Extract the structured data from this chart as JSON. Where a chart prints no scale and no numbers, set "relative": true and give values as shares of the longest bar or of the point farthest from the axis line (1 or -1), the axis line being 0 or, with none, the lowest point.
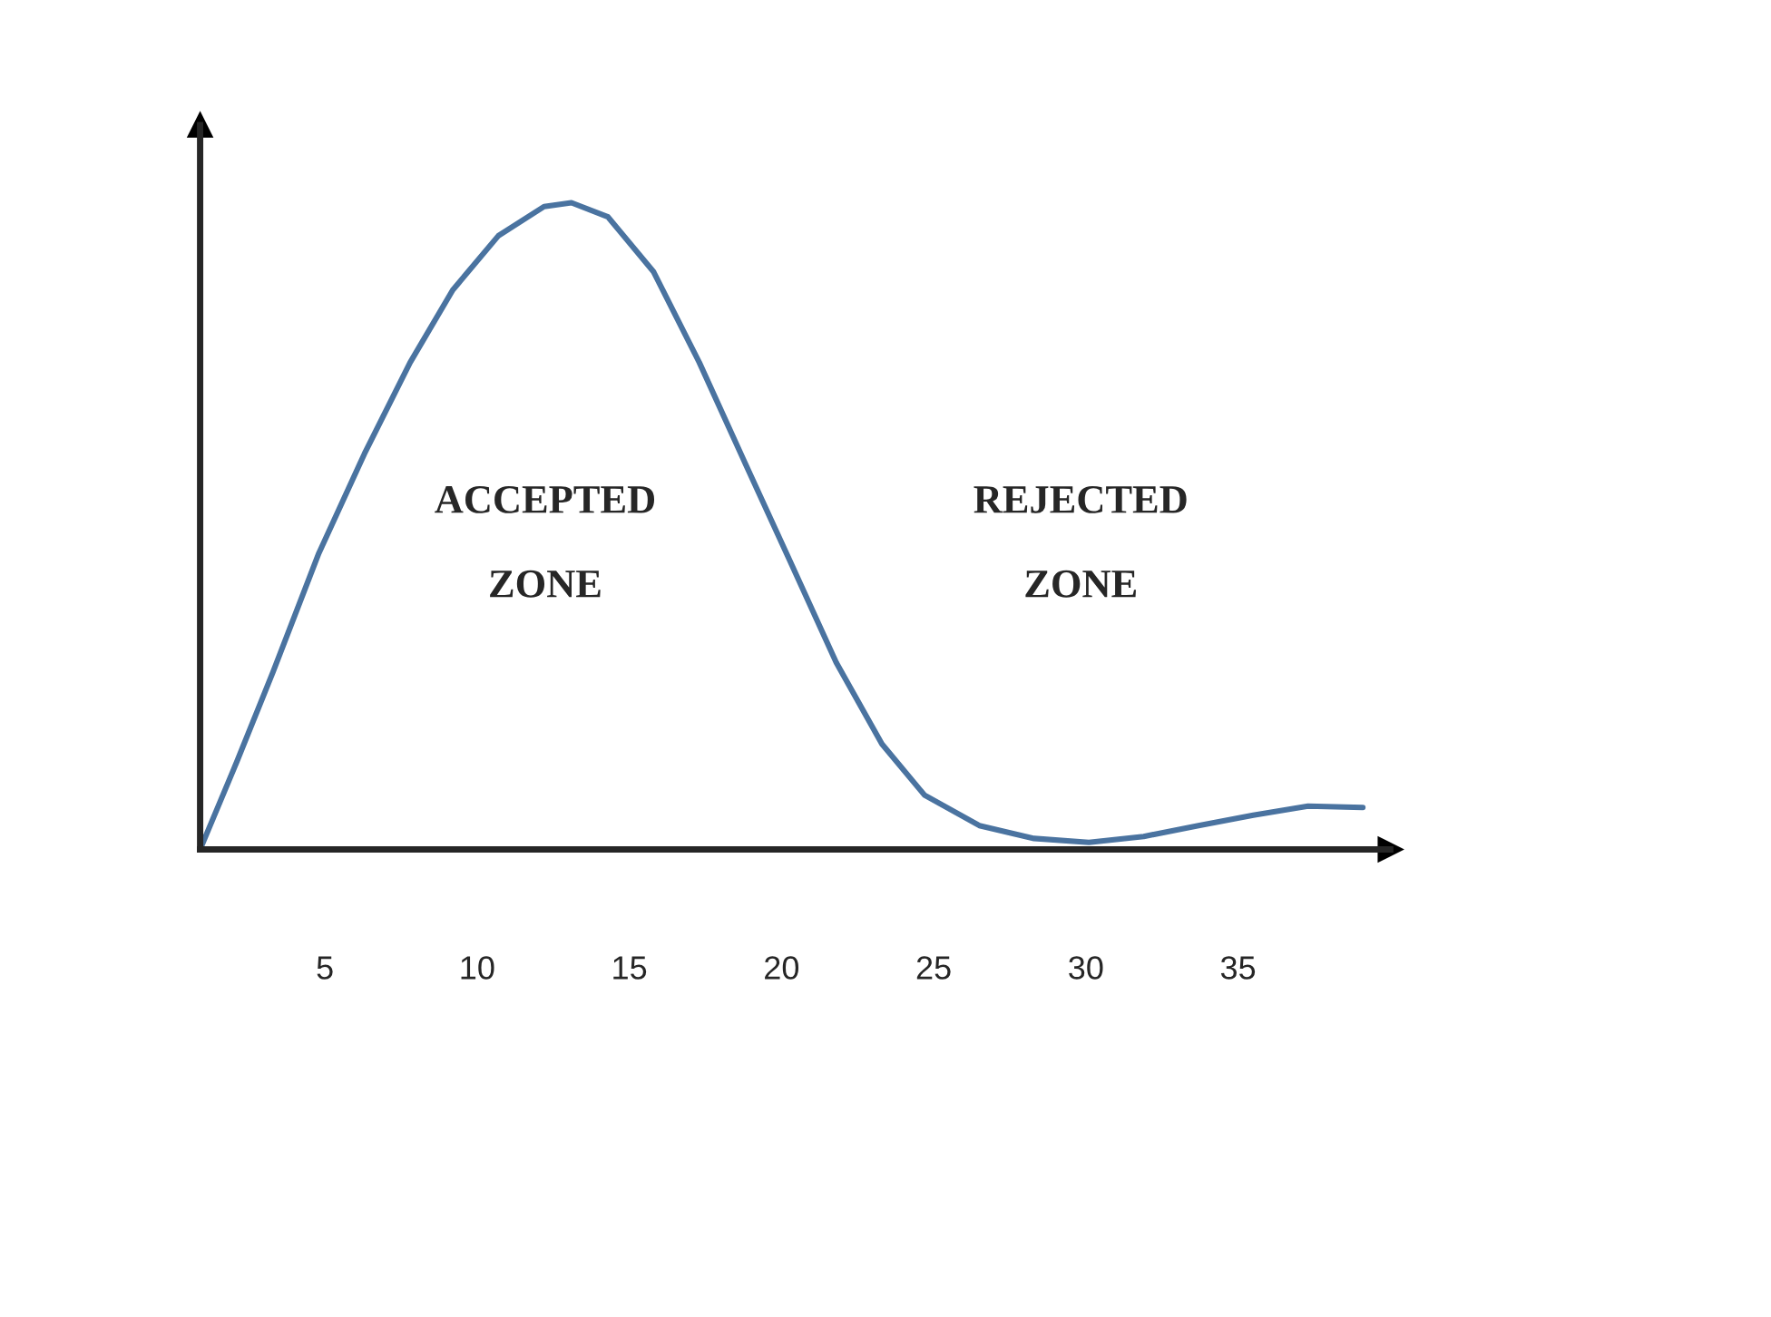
{
  "chart_data": {
    "type": "line",
    "relative": true,
    "x": [
      0.9,
      2.1,
      3.3,
      4.8,
      6.3,
      7.8,
      9.2,
      10.7,
      12.2,
      13.1,
      14.3,
      15.8,
      17.3,
      18.8,
      20.3,
      21.8,
      23.3,
      24.7,
      26.5,
      28.3,
      30.1,
      31.9,
      33.7,
      35.5,
      37.3,
      39.1
    ],
    "series": [
      {
        "color": "#4a73a0",
        "values": [
          0,
          0.135,
          0.275,
          0.458,
          0.612,
          0.753,
          0.865,
          0.949,
          0.994,
          1.0,
          0.978,
          0.893,
          0.753,
          0.598,
          0.444,
          0.289,
          0.163,
          0.084,
          0.037,
          0.017,
          0.011,
          0.02,
          0.037,
          0.053,
          0.067,
          0.065
        ]
      }
    ],
    "xlim": [
      0.9,
      40
    ],
    "xticks": [
      5,
      10,
      15,
      20,
      25,
      30,
      35
    ],
    "annotations": [
      "ACCEPTED\n\nZONE",
      "REJECTED\n\nZONE"
    ],
    "grid": false,
    "legend": false,
    "marker": "none",
    "line_style": "solid"
  }
}
